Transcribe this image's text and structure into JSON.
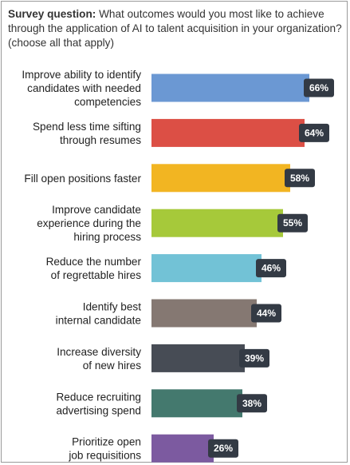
{
  "question": {
    "lead": "Survey question:",
    "text": "What outcomes would you most like to achieve through the application of AI to talent acquisition in your organization? (choose all that apply)"
  },
  "chart_data": {
    "type": "bar",
    "orientation": "horizontal",
    "categories": [
      [
        "Improve ability to identify",
        "candidates with needed",
        "competencies"
      ],
      [
        "Spend less time sifting",
        "through resumes"
      ],
      [
        "Fill open positions faster"
      ],
      [
        "Improve candidate",
        "experience during the",
        "hiring process"
      ],
      [
        "Reduce the number",
        "of regrettable hires"
      ],
      [
        "Identify best",
        "internal candidate"
      ],
      [
        "Increase diversity",
        "of new hires"
      ],
      [
        "Reduce recruiting",
        "advertising spend"
      ],
      [
        "Prioritize open",
        "job requisitions"
      ]
    ],
    "values": [
      66,
      64,
      58,
      55,
      46,
      44,
      39,
      38,
      26
    ],
    "value_labels": [
      "66%",
      "64%",
      "58%",
      "55%",
      "46%",
      "44%",
      "39%",
      "38%",
      "26%"
    ],
    "colors": [
      "#6b98d3",
      "#dc4f45",
      "#f2b522",
      "#a6c93a",
      "#72c2d6",
      "#857872",
      "#474c55",
      "#44796e",
      "#7c5aa0"
    ],
    "badge_color": "#333a44",
    "xlim": [
      0,
      70
    ],
    "grid": false,
    "legend": "none",
    "title": "",
    "xlabel": "",
    "ylabel": ""
  }
}
